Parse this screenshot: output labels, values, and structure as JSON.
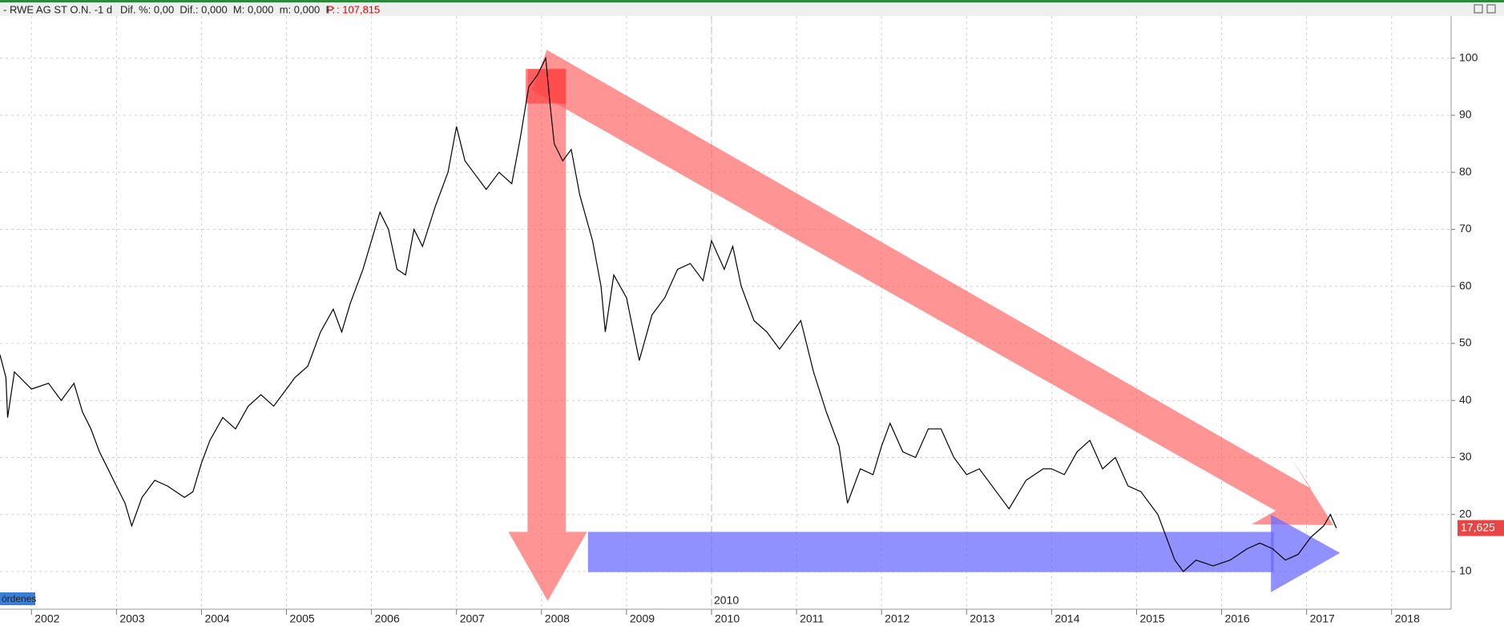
{
  "header": {
    "title": "- RWE AG ST O.N. -",
    "interval": "1 d",
    "stats": "Dif. %: 0,00  Dif.: 0,000  M: 0,000  m: 0,000  F:",
    "price": "P : 107,815"
  },
  "orders_tab": "órdenes",
  "chart_data": {
    "type": "line",
    "series": [
      {
        "color": "#000000",
        "x": [
          2001.63,
          2001.7,
          2001.72,
          2001.8,
          2002.0,
          2002.2,
          2002.35,
          2002.5,
          2002.6,
          2002.7,
          2002.8,
          2002.9,
          2003.0,
          2003.1,
          2003.18,
          2003.3,
          2003.45,
          2003.6,
          2003.8,
          2003.9,
          2004.0,
          2004.1,
          2004.25,
          2004.4,
          2004.55,
          2004.7,
          2004.85,
          2005.0,
          2005.1,
          2005.25,
          2005.4,
          2005.55,
          2005.65,
          2005.75,
          2005.9,
          2006.0,
          2006.1,
          2006.2,
          2006.3,
          2006.4,
          2006.5,
          2006.6,
          2006.75,
          2006.9,
          2007.0,
          2007.1,
          2007.2,
          2007.35,
          2007.5,
          2007.65,
          2007.75,
          2007.85,
          2007.95,
          2008.05,
          2008.1,
          2008.15,
          2008.25,
          2008.35,
          2008.45,
          2008.6,
          2008.7,
          2008.75,
          2008.85,
          2009.0,
          2009.15,
          2009.3,
          2009.45,
          2009.6,
          2009.75,
          2009.9,
          2010.0,
          2010.15,
          2010.25,
          2010.35,
          2010.5,
          2010.65,
          2010.8,
          2010.95,
          2011.05,
          2011.2,
          2011.35,
          2011.5,
          2011.6,
          2011.75,
          2011.9,
          2012.0,
          2012.1,
          2012.25,
          2012.4,
          2012.55,
          2012.7,
          2012.85,
          2013.0,
          2013.15,
          2013.35,
          2013.5,
          2013.7,
          2013.9,
          2014.0,
          2014.15,
          2014.3,
          2014.45,
          2014.6,
          2014.75,
          2014.9,
          2015.05,
          2015.25,
          2015.45,
          2015.55,
          2015.7,
          2015.9,
          2016.1,
          2016.3,
          2016.45,
          2016.6,
          2016.75,
          2016.9,
          2017.05,
          2017.2,
          2017.28,
          2017.35
        ],
        "values": [
          48,
          44,
          37,
          45,
          42,
          43,
          40,
          43,
          38,
          35,
          31,
          28,
          25,
          22,
          18,
          23,
          26,
          25,
          23,
          24,
          29,
          33,
          37,
          35,
          39,
          41,
          39,
          42,
          44,
          46,
          52,
          56,
          52,
          57,
          63,
          68,
          73,
          70,
          63,
          62,
          70,
          67,
          74,
          80,
          88,
          82,
          80,
          77,
          80,
          78,
          86,
          95,
          97,
          100,
          92,
          85,
          82,
          84,
          76,
          68,
          60,
          52,
          62,
          58,
          47,
          55,
          58,
          63,
          64,
          61,
          68,
          63,
          67,
          60,
          54,
          52,
          49,
          52,
          54,
          45,
          38,
          32,
          22,
          28,
          27,
          32,
          36,
          31,
          30,
          35,
          35,
          30,
          27,
          28,
          24,
          21,
          26,
          28,
          28,
          27,
          31,
          33,
          28,
          30,
          25,
          24,
          20,
          12,
          10,
          12,
          11,
          12,
          14,
          15,
          14,
          12,
          13,
          16,
          18,
          20,
          17.625
        ]
      }
    ],
    "last_label": {
      "value": 17.625,
      "label": "17,625"
    },
    "crosshair": 2010,
    "xlim": [
      2001.63,
      2018.7
    ],
    "xticks": [
      2002,
      2003,
      2004,
      2005,
      2006,
      2007,
      2008,
      2009,
      2010,
      2011,
      2012,
      2013,
      2014,
      2015,
      2016,
      2017,
      2018
    ],
    "ylim": [
      3.4,
      107.4
    ],
    "yticks": [
      10,
      20,
      30,
      40,
      50,
      60,
      70,
      80,
      90,
      100
    ],
    "grid": true
  }
}
